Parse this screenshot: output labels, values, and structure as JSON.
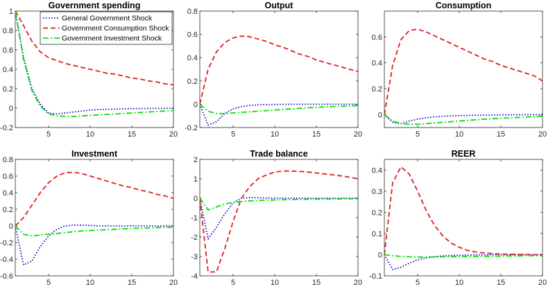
{
  "colors": {
    "general": "#0000c8",
    "consumption": "#dc1e1e",
    "investment": "#00e100",
    "axis": "#262626"
  },
  "legend": {
    "entries": [
      {
        "name": "General Government Shock",
        "style": "dotted",
        "color": "#0000c8"
      },
      {
        "name": "Government Consumption Shock",
        "style": "dashed",
        "color": "#dc1e1e"
      },
      {
        "name": "Government Investment Shock",
        "style": "dashdot",
        "color": "#00e100"
      }
    ]
  },
  "chart_data": [
    {
      "type": "line",
      "title": "Government spending",
      "x": [
        1,
        2,
        3,
        4,
        5,
        6,
        7,
        8,
        9,
        10,
        11,
        12,
        13,
        14,
        15,
        16,
        17,
        18,
        19,
        20
      ],
      "xlim": [
        1,
        20
      ],
      "ylim": [
        -0.2,
        1
      ],
      "xticks": [
        5,
        10,
        15,
        20
      ],
      "xtick_labels": [
        "5",
        "10",
        "15",
        "20"
      ],
      "yticks": [
        -0.2,
        0,
        0.2,
        0.4,
        0.6,
        0.8,
        1
      ],
      "ytick_labels": [
        "-0.2",
        "0",
        "0.2",
        "0.4",
        "0.6",
        "0.8",
        "1"
      ],
      "legend_position": "top-left",
      "series": [
        {
          "name": "General Government Shock",
          "values": [
            1.0,
            0.52,
            0.2,
            0.04,
            -0.05,
            -0.06,
            -0.05,
            -0.04,
            -0.03,
            -0.02,
            -0.015,
            -0.012,
            -0.01,
            -0.008,
            -0.006,
            -0.005,
            -0.004,
            -0.003,
            -0.002,
            -0.002
          ]
        },
        {
          "name": "Government Consumption Shock",
          "values": [
            1.0,
            0.85,
            0.69,
            0.58,
            0.52,
            0.49,
            0.46,
            0.44,
            0.42,
            0.4,
            0.38,
            0.36,
            0.35,
            0.33,
            0.31,
            0.3,
            0.28,
            0.27,
            0.25,
            0.24
          ]
        },
        {
          "name": "Government Investment Shock",
          "values": [
            1.0,
            0.5,
            0.18,
            0.02,
            -0.06,
            -0.08,
            -0.085,
            -0.085,
            -0.08,
            -0.075,
            -0.07,
            -0.065,
            -0.06,
            -0.055,
            -0.05,
            -0.045,
            -0.04,
            -0.035,
            -0.03,
            -0.025
          ]
        }
      ]
    },
    {
      "type": "line",
      "title": "Output",
      "x": [
        1,
        2,
        3,
        4,
        5,
        6,
        7,
        8,
        9,
        10,
        11,
        12,
        13,
        14,
        15,
        16,
        17,
        18,
        19,
        20
      ],
      "xlim": [
        1,
        20
      ],
      "ylim": [
        -0.2,
        0.8
      ],
      "xticks": [
        5,
        10,
        15,
        20
      ],
      "xtick_labels": [
        "5",
        "10",
        "15",
        "20"
      ],
      "yticks": [
        -0.2,
        0,
        0.2,
        0.4,
        0.6,
        0.8
      ],
      "ytick_labels": [
        "-0.2",
        "0",
        "0.2",
        "0.4",
        "0.6",
        "0.8"
      ],
      "series": [
        {
          "name": "General Government Shock",
          "values": [
            0.0,
            -0.18,
            -0.15,
            -0.08,
            -0.04,
            -0.02,
            -0.01,
            -0.005,
            -0.003,
            -0.002,
            -0.001,
            0.0,
            0.0,
            0.0,
            0.0,
            0.0,
            0.0,
            0.0,
            0.0,
            0.0
          ]
        },
        {
          "name": "Government Consumption Shock",
          "values": [
            0.0,
            0.3,
            0.45,
            0.53,
            0.57,
            0.585,
            0.58,
            0.56,
            0.54,
            0.51,
            0.49,
            0.46,
            0.43,
            0.41,
            0.38,
            0.36,
            0.34,
            0.32,
            0.3,
            0.28
          ]
        },
        {
          "name": "Government Investment Shock",
          "values": [
            0.0,
            -0.06,
            -0.08,
            -0.08,
            -0.075,
            -0.07,
            -0.065,
            -0.06,
            -0.055,
            -0.05,
            -0.045,
            -0.04,
            -0.035,
            -0.03,
            -0.027,
            -0.023,
            -0.02,
            -0.017,
            -0.015,
            -0.012
          ]
        }
      ]
    },
    {
      "type": "line",
      "title": "Consumption",
      "x": [
        1,
        2,
        3,
        4,
        5,
        6,
        7,
        8,
        9,
        10,
        11,
        12,
        13,
        14,
        15,
        16,
        17,
        18,
        19,
        20
      ],
      "xlim": [
        1,
        20
      ],
      "ylim": [
        -0.1,
        0.8
      ],
      "xticks": [
        5,
        10,
        15,
        20
      ],
      "xtick_labels": [
        "5",
        "10",
        "15",
        "20"
      ],
      "yticks": [
        0,
        0.2,
        0.4,
        0.6
      ],
      "ytick_labels": [
        "0",
        "0.2",
        "0.4",
        "0.6"
      ],
      "series": [
        {
          "name": "General Government Shock",
          "values": [
            0.0,
            -0.06,
            -0.07,
            -0.05,
            -0.035,
            -0.025,
            -0.018,
            -0.013,
            -0.01,
            -0.008,
            -0.006,
            -0.005,
            -0.004,
            -0.003,
            -0.002,
            -0.002,
            -0.001,
            -0.001,
            -0.001,
            0.0
          ]
        },
        {
          "name": "Government Consumption Shock",
          "values": [
            0.0,
            0.38,
            0.58,
            0.65,
            0.66,
            0.64,
            0.61,
            0.58,
            0.55,
            0.52,
            0.49,
            0.46,
            0.43,
            0.41,
            0.38,
            0.36,
            0.34,
            0.32,
            0.3,
            0.26
          ]
        },
        {
          "name": "Government Investment Shock",
          "values": [
            0.0,
            -0.05,
            -0.07,
            -0.075,
            -0.075,
            -0.07,
            -0.065,
            -0.06,
            -0.055,
            -0.05,
            -0.045,
            -0.04,
            -0.036,
            -0.032,
            -0.028,
            -0.025,
            -0.022,
            -0.019,
            -0.016,
            -0.014
          ]
        }
      ]
    },
    {
      "type": "line",
      "title": "Investment",
      "x": [
        1,
        2,
        3,
        4,
        5,
        6,
        7,
        8,
        9,
        10,
        11,
        12,
        13,
        14,
        15,
        16,
        17,
        18,
        19,
        20
      ],
      "xlim": [
        1,
        20
      ],
      "ylim": [
        -0.6,
        0.8
      ],
      "xticks": [
        5,
        10,
        15,
        20
      ],
      "xtick_labels": [
        "5",
        "10",
        "15",
        "20"
      ],
      "yticks": [
        -0.6,
        -0.4,
        -0.2,
        0,
        0.2,
        0.4,
        0.6,
        0.8
      ],
      "ytick_labels": [
        "-0.6",
        "-0.4",
        "-0.2",
        "0",
        "0.2",
        "0.4",
        "0.6",
        "0.8"
      ],
      "series": [
        {
          "name": "General Government Shock",
          "values": [
            0.0,
            -0.47,
            -0.42,
            -0.25,
            -0.12,
            -0.04,
            0.0,
            0.01,
            0.01,
            0.005,
            0.0,
            0.0,
            0.0,
            0.0,
            0.0,
            0.0,
            0.0,
            0.0,
            0.0,
            0.0
          ]
        },
        {
          "name": "Government Consumption Shock",
          "values": [
            0.0,
            0.1,
            0.25,
            0.4,
            0.52,
            0.6,
            0.64,
            0.645,
            0.63,
            0.6,
            0.57,
            0.54,
            0.51,
            0.48,
            0.46,
            0.43,
            0.41,
            0.38,
            0.36,
            0.33
          ]
        },
        {
          "name": "Government Investment Shock",
          "values": [
            0.0,
            -0.1,
            -0.12,
            -0.11,
            -0.1,
            -0.09,
            -0.08,
            -0.07,
            -0.06,
            -0.055,
            -0.05,
            -0.045,
            -0.04,
            -0.035,
            -0.03,
            -0.027,
            -0.023,
            -0.02,
            -0.017,
            -0.015
          ]
        }
      ]
    },
    {
      "type": "line",
      "title": "Trade balance",
      "x": [
        1,
        2,
        3,
        4,
        5,
        6,
        7,
        8,
        9,
        10,
        11,
        12,
        13,
        14,
        15,
        16,
        17,
        18,
        19,
        20
      ],
      "xlim": [
        1,
        20
      ],
      "ylim": [
        -4,
        2
      ],
      "xticks": [
        5,
        10,
        15,
        20
      ],
      "xtick_labels": [
        "5",
        "10",
        "15",
        "20"
      ],
      "yticks": [
        -4,
        -3,
        -2,
        -1,
        0,
        1,
        2
      ],
      "ytick_labels": [
        "-4",
        "-3",
        "-2",
        "-1",
        "0",
        "1",
        "2"
      ],
      "series": [
        {
          "name": "General Government Shock",
          "values": [
            0.0,
            -2.1,
            -1.5,
            -0.8,
            -0.25,
            0.0,
            0.03,
            0.02,
            0.01,
            0.0,
            0.0,
            0.0,
            0.0,
            0.0,
            0.0,
            0.0,
            0.0,
            0.0,
            0.0,
            0.0
          ]
        },
        {
          "name": "Government Consumption Shock",
          "values": [
            0.0,
            -3.8,
            -3.8,
            -2.6,
            -1.2,
            0.0,
            0.6,
            1.0,
            1.2,
            1.35,
            1.4,
            1.4,
            1.38,
            1.35,
            1.3,
            1.25,
            1.2,
            1.15,
            1.08,
            1.0
          ]
        },
        {
          "name": "Government Investment Shock",
          "values": [
            0.0,
            -0.6,
            -0.45,
            -0.3,
            -0.22,
            -0.17,
            -0.14,
            -0.12,
            -0.1,
            -0.09,
            -0.08,
            -0.07,
            -0.06,
            -0.055,
            -0.05,
            -0.045,
            -0.04,
            -0.035,
            -0.03,
            -0.025
          ]
        }
      ]
    },
    {
      "type": "line",
      "title": "REER",
      "x": [
        1,
        2,
        3,
        4,
        5,
        6,
        7,
        8,
        9,
        10,
        11,
        12,
        13,
        14,
        15,
        16,
        17,
        18,
        19,
        20
      ],
      "xlim": [
        1,
        20
      ],
      "ylim": [
        -0.1,
        0.45
      ],
      "xticks": [
        5,
        10,
        15,
        20
      ],
      "xtick_labels": [
        "5",
        "10",
        "15",
        "20"
      ],
      "yticks": [
        -0.1,
        0,
        0.1,
        0.2,
        0.3,
        0.4
      ],
      "ytick_labels": [
        "-0.1",
        "0",
        "0.1",
        "0.2",
        "0.3",
        "0.4"
      ],
      "series": [
        {
          "name": "General Government Shock",
          "values": [
            0.0,
            -0.07,
            -0.06,
            -0.04,
            -0.025,
            -0.015,
            -0.01,
            -0.006,
            -0.004,
            -0.003,
            -0.002,
            -0.001,
            -0.001,
            0.0,
            0.0,
            0.0,
            0.0,
            0.0,
            0.0,
            0.0
          ]
        },
        {
          "name": "Government Consumption Shock",
          "values": [
            0.0,
            0.34,
            0.415,
            0.38,
            0.3,
            0.21,
            0.14,
            0.09,
            0.055,
            0.035,
            0.02,
            0.012,
            0.008,
            0.005,
            0.003,
            0.002,
            0.001,
            0.001,
            0.0,
            0.0
          ]
        },
        {
          "name": "Government Investment Shock",
          "values": [
            0.0,
            -0.005,
            -0.008,
            -0.01,
            -0.011,
            -0.011,
            -0.011,
            -0.01,
            -0.01,
            -0.009,
            -0.009,
            -0.008,
            -0.008,
            -0.007,
            -0.007,
            -0.006,
            -0.006,
            -0.005,
            -0.005,
            -0.005
          ]
        }
      ]
    }
  ]
}
